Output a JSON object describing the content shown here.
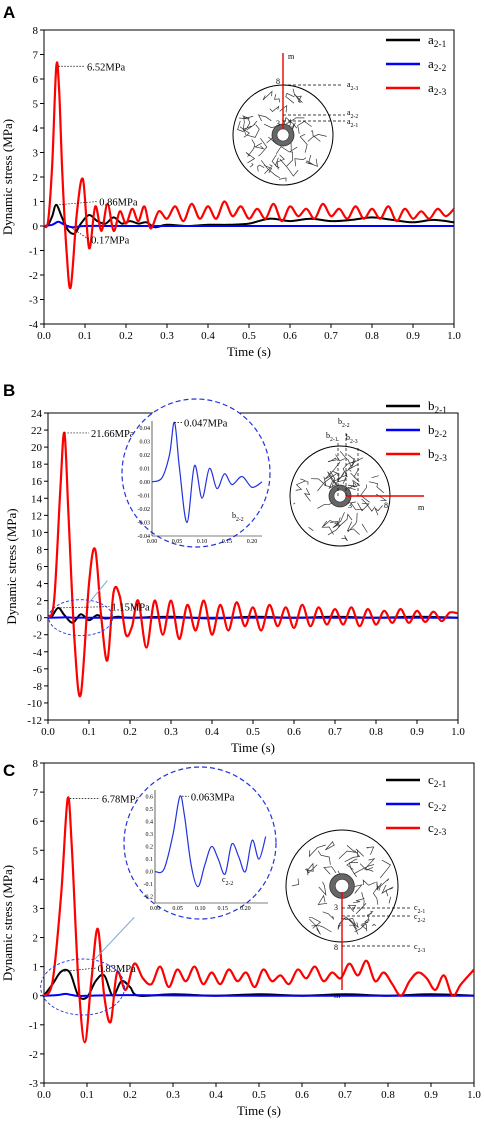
{
  "chart_data": [
    {
      "panel": "A",
      "type": "line",
      "xlabel": "Time (s)",
      "ylabel": "Dynamic stress (MPa)",
      "xlim": [
        0.0,
        1.0
      ],
      "ylim": [
        -4,
        8
      ],
      "xticks": [
        "0.0",
        "0.1",
        "0.2",
        "0.3",
        "0.4",
        "0.5",
        "0.6",
        "0.7",
        "0.8",
        "0.9",
        "1.0"
      ],
      "yticks": [
        "-4",
        "-3",
        "-2",
        "-1",
        "0",
        "1",
        "2",
        "3",
        "4",
        "5",
        "6",
        "7",
        "8"
      ],
      "legend_position": "top-right",
      "series": [
        {
          "name": "a2-1",
          "color": "#000000",
          "x": [
            0,
            0.01,
            0.02,
            0.03,
            0.045,
            0.06,
            0.075,
            0.09,
            0.11,
            0.13,
            0.15,
            0.17,
            0.19,
            0.21,
            0.23,
            0.25,
            0.27,
            0.3,
            0.35,
            0.4,
            0.45,
            0.5,
            0.55,
            0.6,
            0.65,
            0.7,
            0.75,
            0.8,
            0.85,
            0.9,
            0.95,
            1.0
          ],
          "y": [
            0,
            0.05,
            0.4,
            0.86,
            0.3,
            -0.2,
            -0.3,
            0.1,
            0.45,
            0.2,
            0.1,
            0.35,
            0.1,
            0.2,
            0.1,
            0.15,
            -0.05,
            0.05,
            0.0,
            0.05,
            0.05,
            0.1,
            0.3,
            0.2,
            0.3,
            0.2,
            0.25,
            0.35,
            0.25,
            0.15,
            0.25,
            0.15
          ]
        },
        {
          "name": "a2-2",
          "color": "#0000ff",
          "x": [
            0,
            0.02,
            0.035,
            0.05,
            0.07,
            0.1,
            0.2,
            0.4,
            0.6,
            0.8,
            1.0
          ],
          "y": [
            0,
            0.05,
            0.17,
            0.05,
            -0.05,
            0.0,
            0.0,
            0.0,
            0.0,
            0.0,
            0.0
          ]
        },
        {
          "name": "a2-3",
          "color": "#ff0000",
          "x": [
            0,
            0.01,
            0.02,
            0.03,
            0.037,
            0.045,
            0.055,
            0.065,
            0.08,
            0.095,
            0.11,
            0.125,
            0.14,
            0.155,
            0.17,
            0.185,
            0.2,
            0.215,
            0.23,
            0.245,
            0.26,
            0.28,
            0.3,
            0.32,
            0.34,
            0.36,
            0.38,
            0.4,
            0.42,
            0.44,
            0.46,
            0.48,
            0.5,
            0.52,
            0.54,
            0.56,
            0.58,
            0.6,
            0.62,
            0.64,
            0.66,
            0.68,
            0.7,
            0.72,
            0.74,
            0.76,
            0.78,
            0.8,
            0.82,
            0.84,
            0.86,
            0.88,
            0.9,
            0.92,
            0.94,
            0.96,
            0.98,
            1.0
          ],
          "y": [
            0,
            0.2,
            2.5,
            6.52,
            5.5,
            2.0,
            -1.0,
            -2.5,
            0.5,
            1.9,
            -0.9,
            0.8,
            -0.2,
            0.9,
            -0.2,
            0.6,
            0.1,
            0.7,
            0.2,
            0.8,
            -0.1,
            0.6,
            0.3,
            0.8,
            0.2,
            0.9,
            0.3,
            0.8,
            0.3,
            1.0,
            0.4,
            0.8,
            0.3,
            0.7,
            0.3,
            0.9,
            0.2,
            0.8,
            0.4,
            0.7,
            0.3,
            0.9,
            0.4,
            0.7,
            0.3,
            0.8,
            0.3,
            0.7,
            0.3,
            0.8,
            0.2,
            0.7,
            0.3,
            0.6,
            0.3,
            0.7,
            0.4,
            0.7
          ]
        }
      ],
      "annotations": [
        "6.52MPa",
        "0.86MPa",
        "0.17MPa"
      ],
      "schematic_labels": {
        "m": "m",
        "n8": "8",
        "n3": "3",
        "r1": "a2-3",
        "r2": "a2-2",
        "r3": "a2-1"
      }
    },
    {
      "panel": "B",
      "type": "line",
      "xlabel": "Time (s)",
      "ylabel": "Dynamic stress (MPa)",
      "xlim": [
        0.0,
        1.0
      ],
      "ylim": [
        -12,
        24
      ],
      "xticks": [
        "0.0",
        "0.1",
        "0.2",
        "0.3",
        "0.4",
        "0.5",
        "0.6",
        "0.7",
        "0.8",
        "0.9",
        "1.0"
      ],
      "yticks": [
        "-12",
        "-10",
        "-8",
        "-6",
        "-4",
        "-2",
        "0",
        "2",
        "4",
        "6",
        "8",
        "10",
        "12",
        "14",
        "16",
        "18",
        "20",
        "22",
        "24"
      ],
      "legend_position": "top-right",
      "series": [
        {
          "name": "b2-1",
          "color": "#000000",
          "x": [
            0,
            0.01,
            0.025,
            0.04,
            0.06,
            0.08,
            0.1,
            0.12,
            0.14,
            0.17,
            0.2,
            0.3,
            0.4,
            0.5,
            0.6,
            0.7,
            0.8,
            0.9,
            1.0
          ],
          "y": [
            0,
            0.2,
            1.15,
            0.3,
            -0.6,
            0.4,
            -0.3,
            0.3,
            -0.1,
            0.1,
            0.0,
            0.1,
            -0.1,
            0.1,
            0.0,
            0.1,
            0.0,
            0.1,
            0.0
          ]
        },
        {
          "name": "b2-2",
          "color": "#0000ff",
          "x": [
            0,
            0.03,
            0.045,
            0.06,
            0.08,
            0.1,
            0.2,
            0.4,
            0.6,
            0.8,
            1.0
          ],
          "y": [
            0,
            0.02,
            0.047,
            -0.01,
            0.01,
            0.0,
            0.0,
            0.0,
            0.0,
            0.0,
            0.0
          ]
        },
        {
          "name": "b2-3",
          "color": "#ff0000",
          "x": [
            0,
            0.015,
            0.03,
            0.04,
            0.05,
            0.065,
            0.08,
            0.1,
            0.115,
            0.13,
            0.145,
            0.16,
            0.175,
            0.19,
            0.205,
            0.22,
            0.24,
            0.26,
            0.28,
            0.3,
            0.32,
            0.34,
            0.36,
            0.38,
            0.4,
            0.42,
            0.44,
            0.46,
            0.48,
            0.5,
            0.52,
            0.54,
            0.56,
            0.58,
            0.6,
            0.62,
            0.64,
            0.66,
            0.68,
            0.7,
            0.72,
            0.74,
            0.76,
            0.78,
            0.8,
            0.82,
            0.84,
            0.86,
            0.88,
            0.9,
            0.92,
            0.94,
            0.96,
            0.98,
            1.0
          ],
          "y": [
            0,
            2.0,
            15.0,
            21.66,
            12.0,
            -3.0,
            -9.0,
            4.0,
            8.0,
            0.0,
            -5.0,
            3.0,
            2.5,
            -2.0,
            -1.0,
            2.0,
            -3.5,
            2.0,
            -2.0,
            2.0,
            -2.5,
            1.5,
            -1.5,
            2.0,
            -2.0,
            1.5,
            -1.5,
            1.8,
            -1.0,
            1.2,
            -1.5,
            1.5,
            -1.0,
            1.2,
            -1.2,
            1.5,
            -1.0,
            1.2,
            -0.8,
            1.0,
            -0.8,
            1.2,
            -1.0,
            1.0,
            -0.8,
            0.8,
            -0.6,
            1.0,
            -0.6,
            0.8,
            -0.5,
            0.7,
            -0.4,
            0.6,
            0.5
          ]
        }
      ],
      "inset": {
        "xticks": [
          "0.00",
          "0.05",
          "0.10",
          "0.15",
          "0.20"
        ],
        "yticks": [
          "-0.04",
          "-0.03",
          "-0.02",
          "-0.01",
          "0.00",
          "0.01",
          "0.02",
          "0.03",
          "0.04"
        ],
        "label": "b2-2",
        "annotation": "0.047MPa"
      },
      "annotations": [
        "21.66MPa",
        "0.047MPa",
        "1.15MPa"
      ],
      "schematic_labels": {
        "m": "m",
        "n8": "8",
        "n3": "3",
        "r1": "b2-1",
        "r2": "b2-2",
        "r3": "b2-3"
      }
    },
    {
      "panel": "C",
      "type": "line",
      "xlabel": "Time (s)",
      "ylabel": "Dynamic stress (MPa)",
      "xlim": [
        0.0,
        1.0
      ],
      "ylim": [
        -3,
        8
      ],
      "xticks": [
        "0.0",
        "0.1",
        "0.2",
        "0.3",
        "0.4",
        "0.5",
        "0.6",
        "0.7",
        "0.8",
        "0.9",
        "1.0"
      ],
      "yticks": [
        "-3",
        "-2",
        "-1",
        "0",
        "1",
        "2",
        "3",
        "4",
        "5",
        "6",
        "7",
        "8"
      ],
      "legend_position": "top-right",
      "series": [
        {
          "name": "c2-1",
          "color": "#000000",
          "x": [
            0,
            0.02,
            0.04,
            0.06,
            0.08,
            0.1,
            0.12,
            0.14,
            0.16,
            0.18,
            0.2,
            0.22,
            0.3,
            0.4,
            0.5,
            0.6,
            0.7,
            0.8,
            0.9,
            1.0
          ],
          "y": [
            0,
            0.4,
            0.83,
            0.8,
            0.0,
            -0.05,
            0.5,
            0.7,
            0.0,
            0.5,
            0.3,
            0.0,
            0.05,
            0.0,
            0.05,
            0.0,
            0.05,
            0.0,
            0.05,
            0.0
          ]
        },
        {
          "name": "c2-2",
          "color": "#0000ff",
          "x": [
            0,
            0.03,
            0.05,
            0.06,
            0.08,
            0.1,
            0.2,
            0.4,
            0.6,
            0.8,
            1.0
          ],
          "y": [
            0,
            0.02,
            0.063,
            0.04,
            -0.01,
            0.0,
            0.02,
            0.0,
            0.0,
            0.0,
            0.0
          ]
        },
        {
          "name": "c2-3",
          "color": "#ff0000",
          "x": [
            0,
            0.02,
            0.04,
            0.055,
            0.065,
            0.08,
            0.095,
            0.11,
            0.125,
            0.14,
            0.155,
            0.17,
            0.19,
            0.21,
            0.23,
            0.25,
            0.27,
            0.29,
            0.31,
            0.33,
            0.35,
            0.37,
            0.39,
            0.41,
            0.43,
            0.45,
            0.47,
            0.49,
            0.51,
            0.53,
            0.55,
            0.57,
            0.59,
            0.61,
            0.63,
            0.65,
            0.67,
            0.69,
            0.71,
            0.73,
            0.75,
            0.77,
            0.79,
            0.81,
            0.83,
            0.85,
            0.87,
            0.89,
            0.91,
            0.93,
            0.95,
            0.97,
            1.0
          ],
          "y": [
            0,
            0.5,
            3.5,
            6.78,
            5.0,
            0.5,
            -1.6,
            0.5,
            2.3,
            0.0,
            -0.9,
            0.8,
            0.2,
            1.1,
            0.6,
            0.4,
            1.0,
            0.3,
            0.9,
            0.5,
            1.0,
            0.4,
            0.8,
            0.4,
            0.9,
            0.5,
            0.8,
            0.3,
            0.9,
            0.5,
            0.7,
            0.4,
            0.9,
            0.6,
            1.0,
            0.5,
            0.8,
            0.6,
            1.1,
            0.7,
            1.2,
            0.5,
            0.8,
            0.4,
            0.0,
            0.5,
            0.8,
            0.6,
            0.2,
            0.7,
            0.0,
            0.4,
            0.9
          ]
        }
      ],
      "inset": {
        "xticks": [
          "0.00",
          "0.05",
          "0.10",
          "0.15",
          "0.20"
        ],
        "yticks": [
          "-0.2",
          "-0.1",
          "0.0",
          "0.1",
          "0.2",
          "0.3",
          "0.4",
          "0.5",
          "0.6"
        ],
        "label": "c2-2",
        "annotation": "0.063MPa"
      },
      "annotations": [
        "6.78MPa",
        "0.063MPa",
        "0.83MPa"
      ],
      "schematic_labels": {
        "m": "m",
        "n8": "8",
        "n3": "3",
        "r1": "c2-1",
        "r2": "c2-2",
        "r3": "c2-3"
      }
    }
  ]
}
